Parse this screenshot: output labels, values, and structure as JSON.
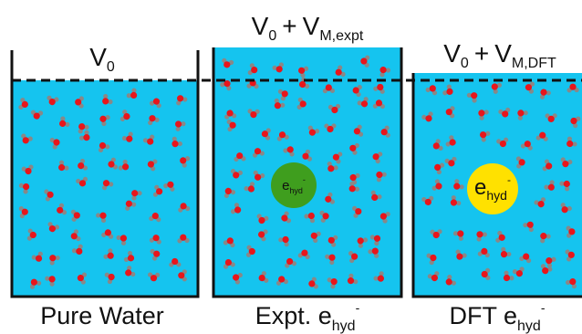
{
  "beakers": [
    {
      "volume_label": {
        "main": "V",
        "sub": "0"
      },
      "caption": {
        "text": "Pure Water"
      }
    },
    {
      "volume_label": {
        "main": "V",
        "sub": "0",
        "plus": "+",
        "main2": "V",
        "sub2": "M,expt"
      },
      "caption": {
        "text": "Expt. e",
        "sub": "hyd",
        "sup": "-"
      },
      "electron": {
        "main": "e",
        "sub": "hyd",
        "sup": "-"
      }
    },
    {
      "volume_label": {
        "main": "V",
        "sub": "0",
        "plus": "+",
        "main2": "V",
        "sub2": "M,DFT"
      },
      "caption": {
        "text": "DFT e",
        "sub": "hyd",
        "sup": "-"
      },
      "electron": {
        "main": "e",
        "sub": "hyd",
        "sup": "-"
      }
    }
  ]
}
